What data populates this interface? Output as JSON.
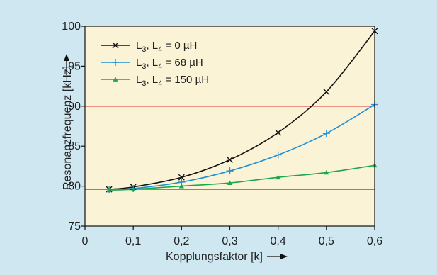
{
  "chart_data": {
    "type": "line",
    "title": "",
    "xlabel": "Kopplungsfaktor [k]",
    "ylabel": "Resonanzfrequenz [kHz]",
    "xlim": [
      0,
      0.6
    ],
    "ylim": [
      75,
      100
    ],
    "x_ticks": [
      0,
      0.1,
      0.2,
      0.3,
      0.4,
      0.5,
      0.6
    ],
    "x_tick_labels": [
      "0",
      "0,1",
      "0,2",
      "0,3",
      "0,4",
      "0,5",
      "0,6"
    ],
    "y_ticks": [
      75,
      80,
      85,
      90,
      95,
      100
    ],
    "y_tick_labels": [
      "75",
      "80",
      "85",
      "90",
      "95",
      "100"
    ],
    "grid": false,
    "legend_position": "top-left",
    "reference_lines": [
      {
        "y": 90,
        "color": "#e03030"
      },
      {
        "y": 79.6,
        "color": "#e03030"
      }
    ],
    "series": [
      {
        "name": "L3, L4 = 0 µH",
        "legend_main": "L",
        "legend_sub1": "3",
        "legend_mid": ", L",
        "legend_sub2": "4",
        "legend_tail": " = 0 µH",
        "color": "#111111",
        "marker": "x",
        "x": [
          0.05,
          0.1,
          0.2,
          0.3,
          0.4,
          0.5,
          0.6
        ],
        "values": [
          79.6,
          79.9,
          81.1,
          83.3,
          86.7,
          91.8,
          99.4
        ]
      },
      {
        "name": "L3, L4 = 68 µH",
        "legend_main": "L",
        "legend_sub1": "3",
        "legend_mid": ", L",
        "legend_sub2": "4",
        "legend_tail": " = 68 µH",
        "color": "#1e90d6",
        "marker": "plus",
        "x": [
          0.05,
          0.1,
          0.2,
          0.3,
          0.4,
          0.5,
          0.6
        ],
        "values": [
          79.6,
          79.7,
          80.5,
          81.9,
          83.9,
          86.6,
          90.2
        ]
      },
      {
        "name": "L3, L4 = 150 µH",
        "legend_main": "L",
        "legend_sub1": "3",
        "legend_mid": ", L",
        "legend_sub2": "4",
        "legend_tail": " = 150 µH",
        "color": "#1aa84a",
        "marker": "triangle",
        "x": [
          0.05,
          0.1,
          0.2,
          0.3,
          0.4,
          0.5,
          0.6
        ],
        "values": [
          79.5,
          79.6,
          80.0,
          80.4,
          81.1,
          81.7,
          82.6
        ]
      }
    ]
  }
}
